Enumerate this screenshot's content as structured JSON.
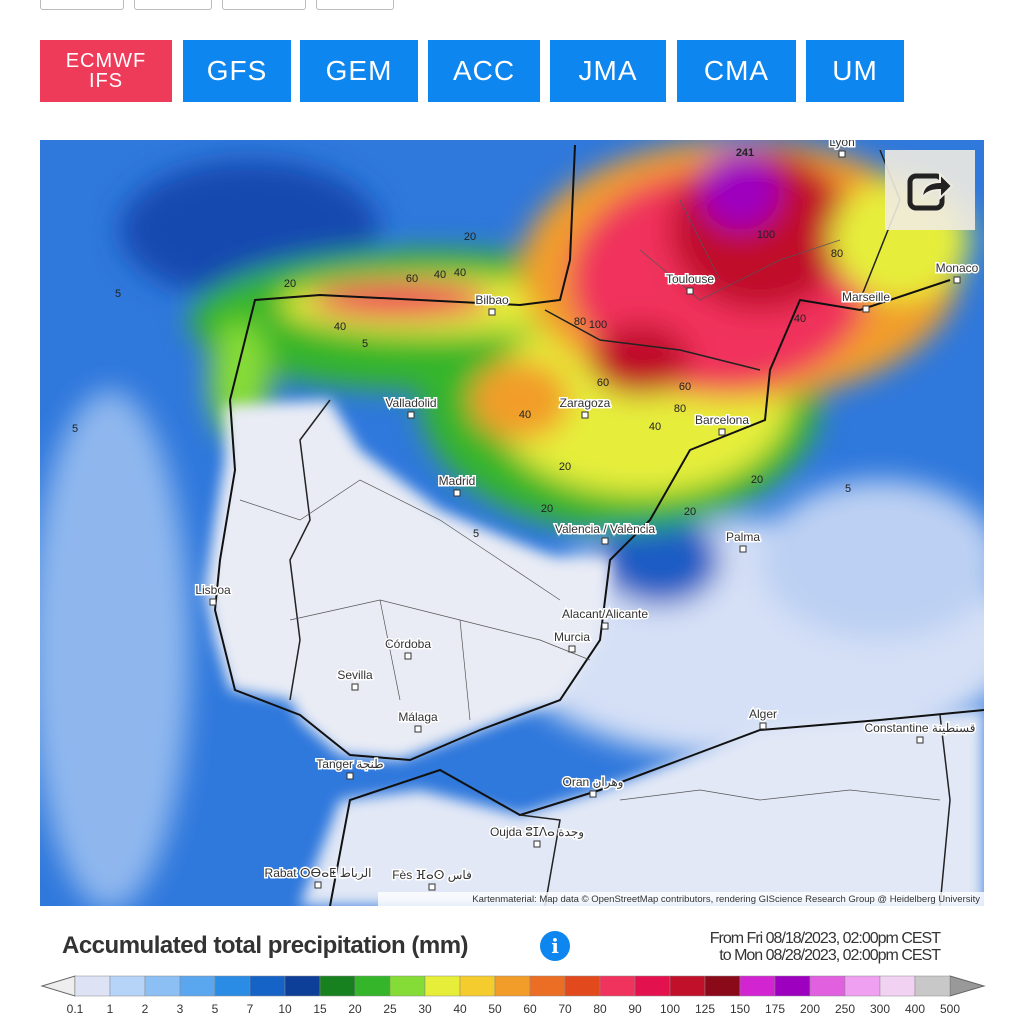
{
  "models": [
    "ECMWF IFS",
    "GFS",
    "GEM",
    "ACC",
    "JMA",
    "CMA",
    "UM"
  ],
  "map": {
    "cities": [
      "Lyon",
      "Monaco",
      "Toulouse",
      "Marseille",
      "Bilbao",
      "Valladolid",
      "Zaragoza",
      "Barcelona",
      "Madrid",
      "Valencia / València",
      "Palma",
      "Lisboa",
      "Alacant/Alicante",
      "Murcia",
      "Córdoba",
      "Sevilla",
      "Málaga",
      "Alger",
      "Constantine قسنطينة",
      "Tanger طنجة",
      "Oran وهران",
      "Oujda ⵓⵊⴷⴰ وجدة",
      "Rabat ⵔⴱⴰⵟ الرباط",
      "Fès ⴼⴰⵙ فاس"
    ],
    "contour_labels": [
      "241",
      "100",
      "80",
      "100",
      "60",
      "60",
      "40",
      "20",
      "20",
      "20",
      "40",
      "40",
      "60",
      "80",
      "40",
      "20",
      "20",
      "5",
      "5",
      "5",
      "5",
      "5",
      "80",
      "40",
      "20",
      "40"
    ],
    "attribution": "Kartenmaterial: Map data © OpenStreetMap contributors, rendering GIScience Research Group @ Heidelberg University"
  },
  "legend": {
    "title": "Accumulated total precipitation (mm)",
    "period": [
      "From Fri 08/18/2023, 02:00pm CEST",
      "to Mon 08/28/2023, 02:00pm CEST"
    ],
    "scale_labels": [
      "0.1",
      "1",
      "2",
      "3",
      "5",
      "7",
      "10",
      "15",
      "20",
      "25",
      "30",
      "40",
      "50",
      "60",
      "70",
      "80",
      "90",
      "100",
      "125",
      "150",
      "175",
      "200",
      "250",
      "300",
      "400",
      "500"
    ],
    "colors": [
      "#dde3f5",
      "#b6d3f8",
      "#8cc0f5",
      "#5aa6ef",
      "#2b8ce6",
      "#1663c7",
      "#0d3f99",
      "#17801f",
      "#34b52a",
      "#86dc36",
      "#e6ee3a",
      "#f5cc2e",
      "#f29d2a",
      "#ec6d24",
      "#e24a1e",
      "#f0335c",
      "#e3124f",
      "#c0102a",
      "#8a0a1a",
      "#d224d0",
      "#9e00c0",
      "#e060e0",
      "#f0a0f0",
      "#f2d2f2",
      "#c8c8c8"
    ]
  }
}
